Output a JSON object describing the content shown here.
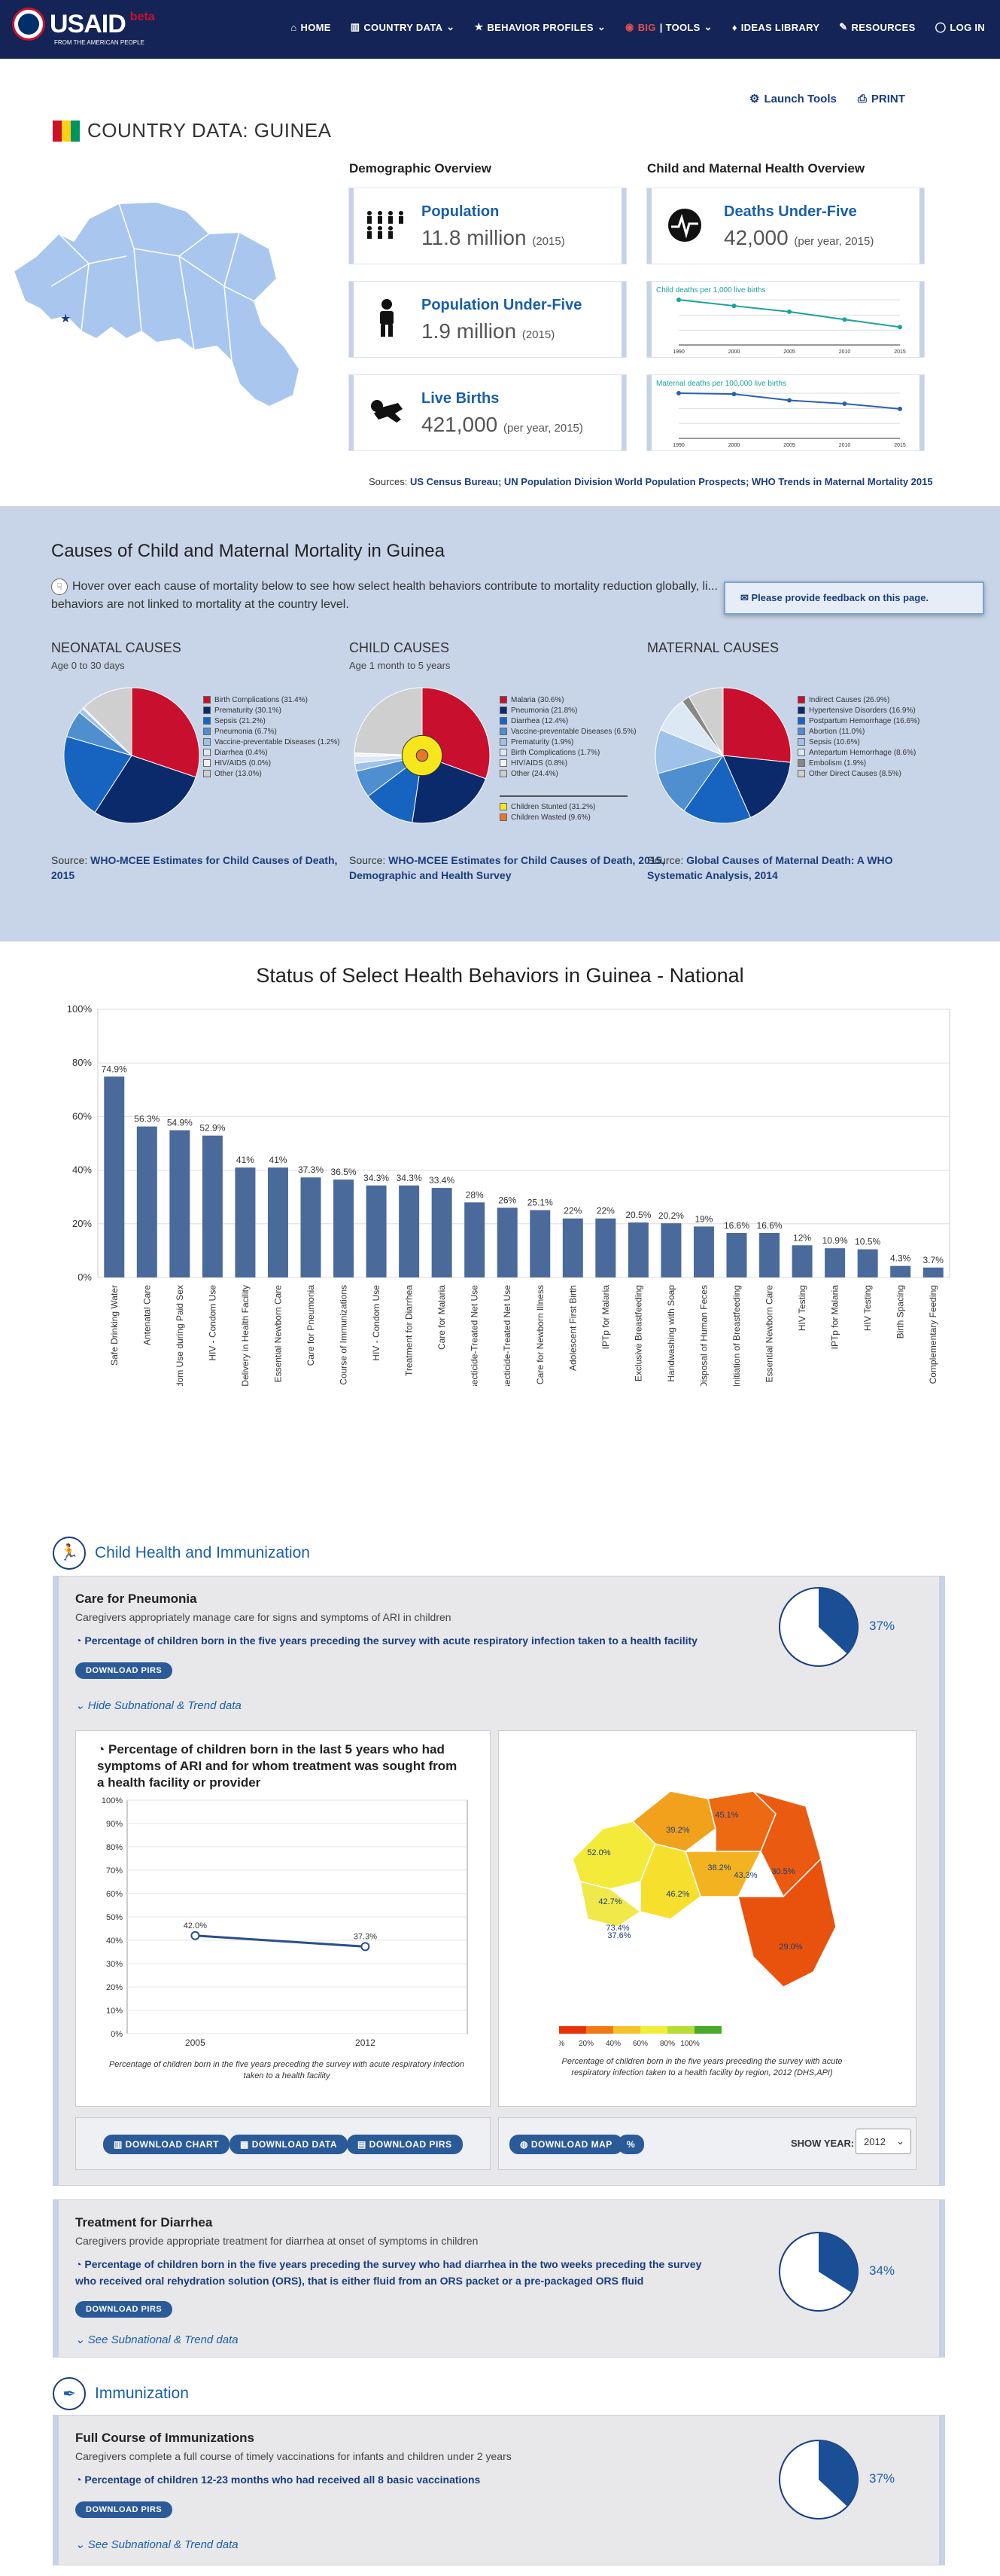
{
  "nav": {
    "brand": "USAID",
    "brand_sub": "FROM THE AMERICAN PEOPLE",
    "beta": "beta",
    "items": [
      {
        "label": "HOME"
      },
      {
        "label": "COUNTRY DATA"
      },
      {
        "label": "BEHAVIOR PROFILES"
      },
      {
        "label_big": "BIG",
        "label": "| TOOLS"
      },
      {
        "label": "IDEAS LIBRARY"
      },
      {
        "label": "RESOURCES"
      },
      {
        "label": "LOG IN"
      }
    ]
  },
  "header": {
    "launch_tools": "Launch Tools",
    "print": "PRINT",
    "title": "COUNTRY DATA: GUINEA",
    "flag_colors": [
      "#ce1126",
      "#fcd116",
      "#009460"
    ]
  },
  "demographic": {
    "heading": "Demographic Overview",
    "cards": [
      {
        "title": "Population",
        "value": "11.8 million",
        "note": "(2015)",
        "icon": "population-icon"
      },
      {
        "title": "Population Under-Five",
        "value": "1.9 million",
        "note": "(2015)",
        "icon": "child-icon"
      },
      {
        "title": "Live Births",
        "value": "421,000",
        "note": "(per year, 2015)",
        "icon": "baby-icon"
      }
    ]
  },
  "child_maternal": {
    "heading": "Child and Maternal Health Overview",
    "deaths_title": "Deaths Under-Five",
    "deaths_value": "42,000",
    "deaths_note": "(per year, 2015)",
    "child_chart_title": "Child deaths per 1,000 live births",
    "child_chart_x": [
      "1990",
      "2000",
      "2005",
      "2010",
      "2015"
    ],
    "child_chart_values": [
      238,
      206,
      175,
      134,
      94
    ],
    "maternal_chart_title": "Maternal deaths per 100,000 live births",
    "maternal_chart_x": [
      "1990",
      "2000",
      "2005",
      "2010",
      "2015"
    ],
    "maternal_chart_values": [
      1040,
      1020,
      876,
      797,
      679
    ]
  },
  "sources": {
    "label": "Sources:",
    "text": "US Census Bureau; UN Population Division World Population Prospects; WHO Trends in Maternal Mortality 2015"
  },
  "causes": {
    "heading": "Causes of Child and Maternal Mortality in Guinea",
    "note": "Hover over each cause of mortality below to see how select health behaviors contribute to mortality reduction globally, li... behaviors are not linked to mortality at the country level.",
    "feedback": "Please provide feedback on this page.",
    "neonatal": {
      "title": "NEONATAL CAUSES",
      "sub": "Age 0 to 30 days",
      "slices": [
        {
          "label": "Birth Complications (31.4%)",
          "value": 31.4,
          "color": "#c8102e"
        },
        {
          "label": "Prematurity (30.1%)",
          "value": 30.1,
          "color": "#0b2a6b"
        },
        {
          "label": "Sepsis (21.2%)",
          "value": 21.2,
          "color": "#1764c0"
        },
        {
          "label": "Pneumonia (6.7%)",
          "value": 6.7,
          "color": "#4f8fd0"
        },
        {
          "label": "Vaccine-preventable Diseases (1.2%)",
          "value": 1.2,
          "color": "#9ec2ea"
        },
        {
          "label": "Diarrhea (0.4%)",
          "value": 0.4,
          "color": "#dde8f5"
        },
        {
          "label": "HIV/AIDS (0.0%)",
          "value": 0.0,
          "color": "#f3f3f3"
        },
        {
          "label": "Other (13.0%)",
          "value": 13.0,
          "color": "#cfcfcf"
        }
      ],
      "source_label": "Source:",
      "source": "WHO-MCEE Estimates for Child Causes of Death, 2015"
    },
    "child": {
      "title": "CHILD CAUSES",
      "sub": "Age 1 month to 5 years",
      "slices": [
        {
          "label": "Malaria (30.6%)",
          "value": 30.6,
          "color": "#c8102e"
        },
        {
          "label": "Pneumonia (21.8%)",
          "value": 21.8,
          "color": "#0b2a6b"
        },
        {
          "label": "Diarrhea (12.4%)",
          "value": 12.4,
          "color": "#1764c0"
        },
        {
          "label": "Vaccine-preventable Diseases (6.5%)",
          "value": 6.5,
          "color": "#4f8fd0"
        },
        {
          "label": "Prematurity (1.9%)",
          "value": 1.9,
          "color": "#9ec2ea"
        },
        {
          "label": "Birth Complications (1.7%)",
          "value": 1.7,
          "color": "#dde8f5"
        },
        {
          "label": "HIV/AIDS (0.8%)",
          "value": 0.8,
          "color": "#f3f3f3"
        },
        {
          "label": "Other (24.4%)",
          "value": 24.4,
          "color": "#cfcfcf"
        }
      ],
      "extra": [
        {
          "label": "Children Stunted (31.2%)",
          "value": 31.2,
          "color": "#f5e71c"
        },
        {
          "label": "Children Wasted (9.6%)",
          "value": 9.6,
          "color": "#e8762b"
        }
      ],
      "source_label": "Source:",
      "source": "WHO-MCEE Estimates for Child Causes of Death, 2015, Demographic and Health Survey"
    },
    "maternal": {
      "title": "MATERNAL CAUSES",
      "slices": [
        {
          "label": "Indirect Causes (26.9%)",
          "value": 26.9,
          "color": "#c8102e"
        },
        {
          "label": "Hypertensive Disorders (16.9%)",
          "value": 16.9,
          "color": "#0b2a6b"
        },
        {
          "label": "Postpartum Hemorrhage (16.6%)",
          "value": 16.6,
          "color": "#1764c0"
        },
        {
          "label": "Abortion (11.0%)",
          "value": 11.0,
          "color": "#4f8fd0"
        },
        {
          "label": "Sepsis (10.6%)",
          "value": 10.6,
          "color": "#9ec2ea"
        },
        {
          "label": "Antepartum Hemorrhage (8.6%)",
          "value": 8.6,
          "color": "#dde8f5"
        },
        {
          "label": "Embolism (1.9%)",
          "value": 1.9,
          "color": "#888888"
        },
        {
          "label": "Other Direct Causes (8.5%)",
          "value": 8.5,
          "color": "#cfcfcf"
        }
      ],
      "source_label": "Source:",
      "source": "Global Causes of Maternal Death: A WHO Systematic Analysis, 2014"
    }
  },
  "chart_data": {
    "type": "bar",
    "title": "Status of Select Health Behaviors in Guinea - National",
    "ylim": [
      0,
      100
    ],
    "yticks": [
      "0%",
      "20%",
      "40%",
      "60%",
      "80%",
      "100%"
    ],
    "bar_color": "#4a6a9c",
    "categories": [
      "Safe Drinking Water",
      "Antenatal Care",
      "HIV - Male Condom Use during Paid Sex",
      "HIV - Condom Use",
      "Delivery in Health Facility",
      "Essential Newborn Care",
      "Care for Pneumonia",
      "Full Course of Immunizations",
      "HIV - Condom Use",
      "Treatment for Diarrhea",
      "Care for Malaria",
      "Insecticide-Treated Net Use",
      "Insecticide-Treated Net Use",
      "Care for Newborn Illness",
      "Adolescent First Birth",
      "IPTp for Malaria",
      "Exclusive Breastfeeding",
      "Handwashing with Soap",
      "Safe Disposal of Human Feces",
      "Early Initiation of Breastfeeding",
      "Essential Newborn Care",
      "HIV Testing",
      "IPTp for Malaria",
      "HIV Testing",
      "Birth Spacing",
      "Complementary Feeding"
    ],
    "values": [
      74.9,
      56.3,
      54.9,
      52.9,
      41,
      41,
      37.3,
      36.5,
      34.3,
      34.3,
      33.4,
      28,
      26,
      25.1,
      22,
      22,
      20.5,
      20.2,
      19,
      16.6,
      16.6,
      12,
      10.9,
      10.5,
      4.3,
      3.7
    ],
    "labels": [
      "74.9%",
      "56.3%",
      "54.9%",
      "52.9%",
      "41%",
      "41%",
      "37.3%",
      "36.5%",
      "34.3%",
      "34.3%",
      "33.4%",
      "28%",
      "26%",
      "25.1%",
      "22%",
      "22%",
      "20.5%",
      "20.2%",
      "19%",
      "16.6%",
      "16.6%",
      "12%",
      "10.9%",
      "10.5%",
      "4.3%",
      "3.7%"
    ]
  },
  "child_health": {
    "heading": "Child Health and Immunization",
    "pneumonia": {
      "title": "Care for Pneumonia",
      "desc": "Caregivers appropriately manage care for signs and symptoms of ARI in children",
      "indicator": "Percentage of children born in the five years preceding the survey with acute respiratory infection taken to a health facility",
      "pirs": "DOWNLOAD PIRS",
      "toggle": "Hide Subnational & Trend data",
      "pct": "37%",
      "pct_value": 37,
      "trend_title": "Percentage of children born in the last 5 years who had symptoms of ARI and for whom treatment was sought from a health facility or provider",
      "trend_yticks": [
        "0%",
        "10%",
        "20%",
        "30%",
        "40%",
        "50%",
        "60%",
        "70%",
        "80%",
        "90%",
        "100%"
      ],
      "trend_x": [
        "2005",
        "2012"
      ],
      "trend_values": [
        42.0,
        37.3
      ],
      "trend_labels": [
        "42.0%",
        "37.3%"
      ],
      "trend_caption": "Percentage of children born in the five years preceding the survey with acute respiratory infection taken to a health facility",
      "map_labels": [
        "52.0%",
        "39.2%",
        "45.1%",
        "38.2%",
        "46.2%",
        "42.7%",
        "43.3%",
        "30.5%",
        "37.6%",
        "73.4%",
        "29.0%"
      ],
      "map_scale": [
        "0%",
        "20%",
        "40%",
        "60%",
        "80%",
        "100%"
      ],
      "map_caption": "Percentage of children born in the five years preceding the survey with acute respiratory infection taken to a health facility by region, 2012 (DHS,API)",
      "btn_chart": "DOWNLOAD CHART",
      "btn_data": "DOWNLOAD DATA",
      "btn_pirs": "DOWNLOAD PIRS",
      "btn_map": "DOWNLOAD MAP",
      "btn_pct": "%",
      "show_year_label": "SHOW YEAR:",
      "show_year": "2012"
    },
    "diarrhea": {
      "title": "Treatment for Diarrhea",
      "desc": "Caregivers provide appropriate treatment for diarrhea at onset of symptoms in children",
      "indicator": "Percentage of children born in the five years preceding the survey who had diarrhea in the two weeks preceding the survey who received oral rehydration solution (ORS), that is either fluid from an ORS packet or a pre-packaged ORS fluid",
      "pirs": "DOWNLOAD PIRS",
      "toggle": "See Subnational & Trend data",
      "pct": "34%",
      "pct_value": 34
    }
  },
  "immunization": {
    "heading": "Immunization",
    "title": "Full Course of Immunizations",
    "desc": "Caregivers complete a full course of timely vaccinations for infants and children under 2 years",
    "indicator": "Percentage of children 12-23 months who had received all 8 basic vaccinations",
    "pirs": "DOWNLOAD PIRS",
    "toggle": "See Subnational & Trend data",
    "pct": "37%",
    "pct_value": 37
  }
}
